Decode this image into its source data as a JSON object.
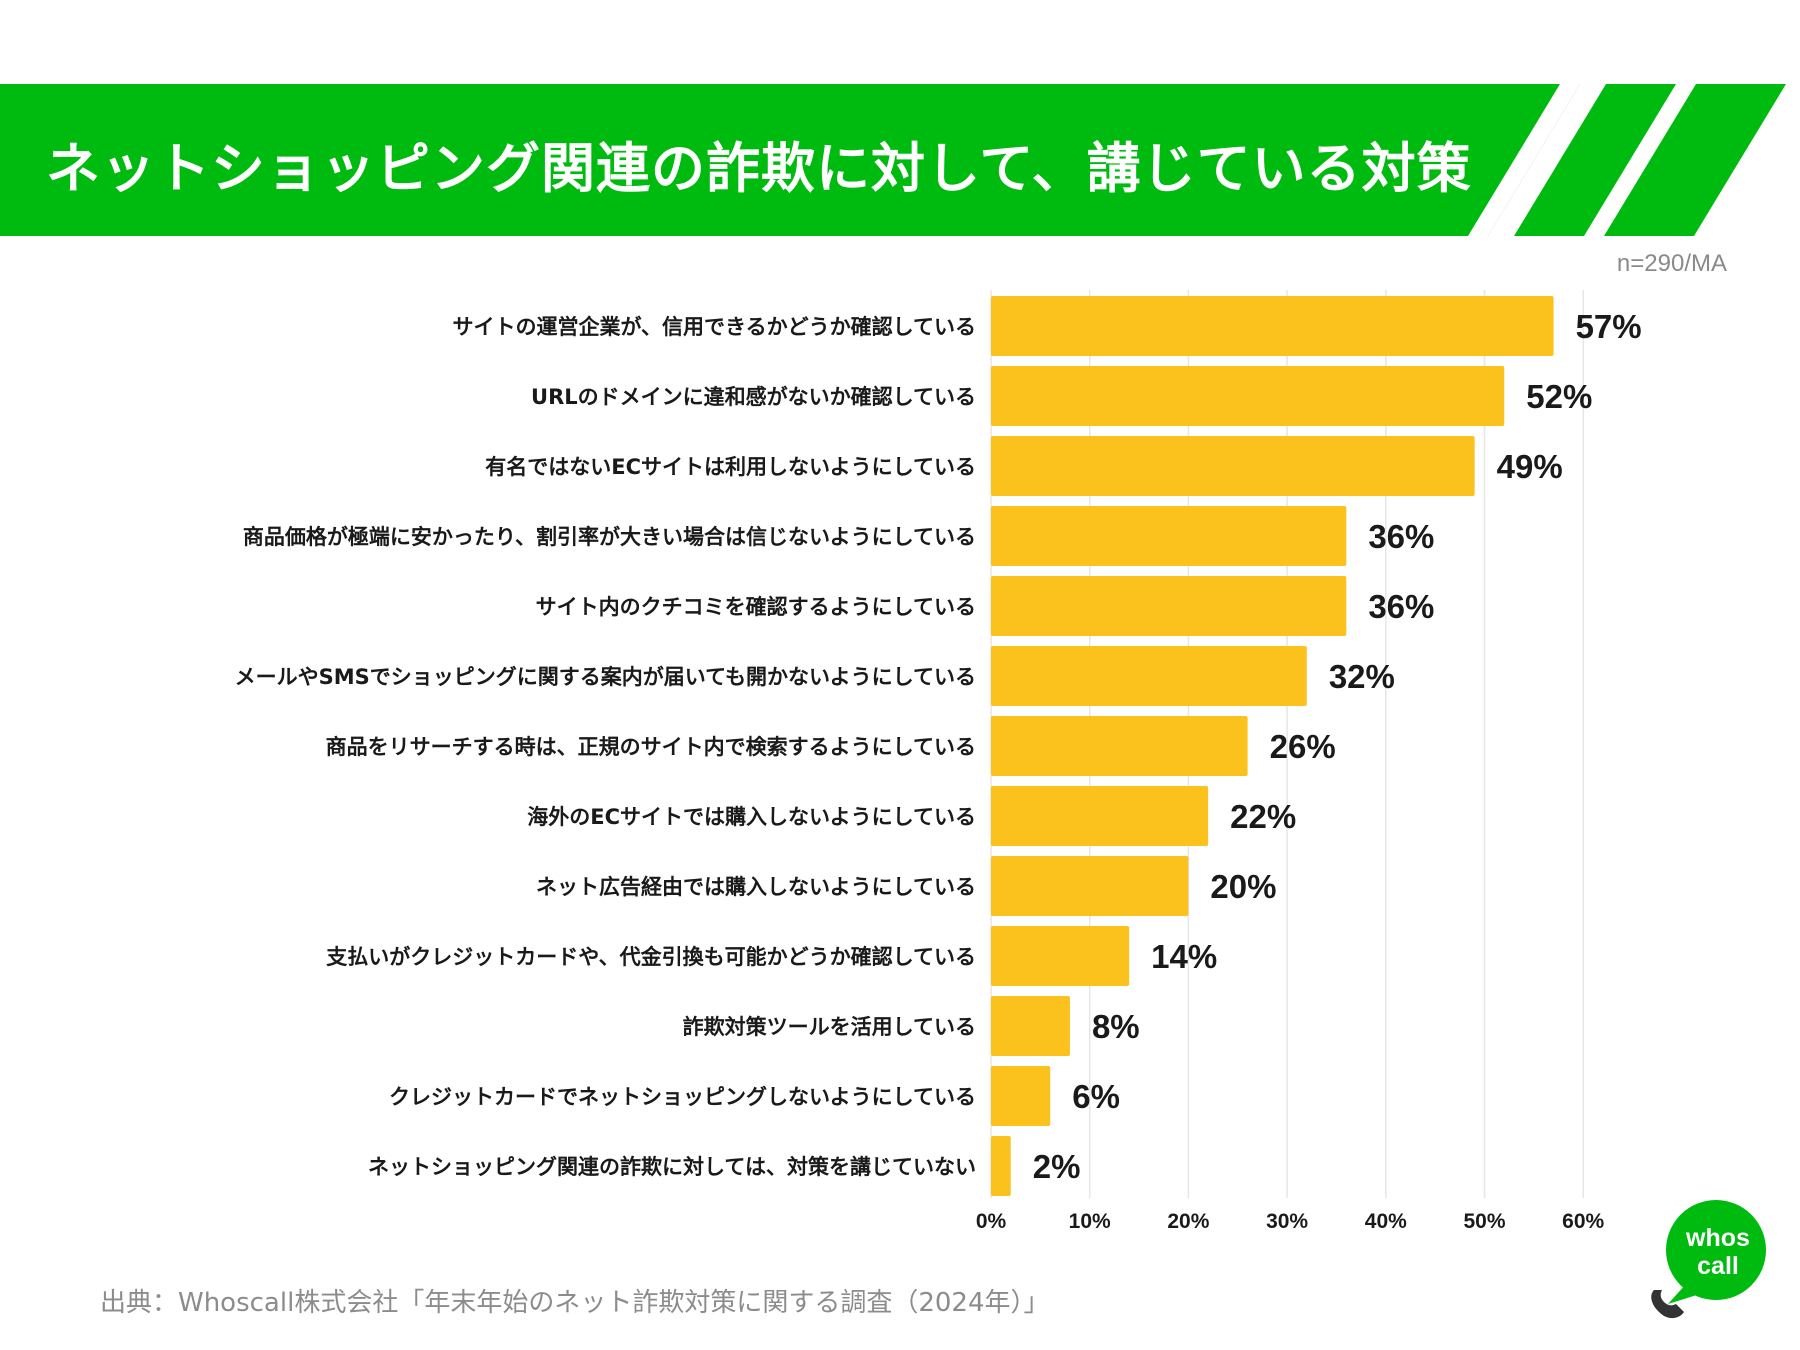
{
  "header": {
    "title": "ネットショッピング関連の詐欺に対して、講じている対策"
  },
  "sample_note": "n=290/MA",
  "source": "出典：Whoscall株式会社「年末年始のネット詐欺対策に関する調査（2024年）」",
  "logo": {
    "line1": "whos",
    "line2": "call",
    "icon": "phone-icon"
  },
  "colors": {
    "header_green": "#00bb0f",
    "bar": "#fbc21e",
    "grid": "#e6e6e6",
    "text": "#1a1a1a"
  },
  "chart_data": {
    "type": "bar",
    "orientation": "horizontal",
    "title": "ネットショッピング関連の詐欺に対して、講じている対策",
    "xlabel": "",
    "ylabel": "",
    "xlim": [
      0,
      60
    ],
    "x_ticks": [
      "0%",
      "10%",
      "20%",
      "30%",
      "40%",
      "50%",
      "60%"
    ],
    "grid": true,
    "categories": [
      "サイトの運営企業が、信用できるかどうか確認している",
      "URLのドメインに違和感がないか確認している",
      "有名ではないECサイトは利用しないようにしている",
      "商品価格が極端に安かったり、割引率が大きい場合は信じないようにしている",
      "サイト内のクチコミを確認するようにしている",
      "メールやSMSでショッピングに関する案内が届いても開かないようにしている",
      "商品をリサーチする時は、正規のサイト内で検索するようにしている",
      "海外のECサイトでは購入しないようにしている",
      "ネット広告経由では購入しないようにしている",
      "支払いがクレジットカードや、代金引換も可能かどうか確認している",
      "詐欺対策ツールを活用している",
      "クレジットカードでネットショッピングしないようにしている",
      "ネットショッピング関連の詐欺に対しては、対策を講じていない"
    ],
    "values": [
      57,
      52,
      49,
      36,
      36,
      32,
      26,
      22,
      20,
      14,
      8,
      6,
      2
    ],
    "value_labels": [
      "57%",
      "52%",
      "49%",
      "36%",
      "36%",
      "32%",
      "26%",
      "22%",
      "20%",
      "14%",
      "8%",
      "6%",
      "2%"
    ]
  }
}
